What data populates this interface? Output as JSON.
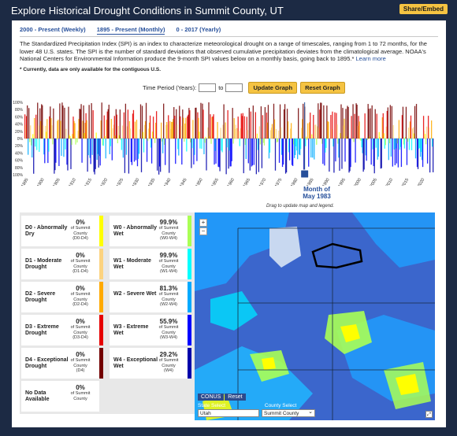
{
  "header": {
    "title": "Explore Historical Drought Conditions in Summit County, UT",
    "share_label": "Share/Embed"
  },
  "tabs": [
    {
      "label": "2000 - Present (Weekly)"
    },
    {
      "label": "1895 - Present (Monthly)"
    },
    {
      "label": "0 - 2017 (Yearly)"
    }
  ],
  "description": {
    "text": "The Standardized Precipitation Index (SPI) is an index to characterize meteorological drought on a range of timescales, ranging from 1 to 72 months, for the lower 48 U.S. states. The SPI is the number of standard deviations that observed cumulative precipitation deviates from the climatological average. NOAA's National Centers for Environmental Information produce the 9-month SPI values below on a monthly basis, going back to 1895.*",
    "link": "Learn more",
    "note": "* Currently, data are only available for the contiguous U.S."
  },
  "period": {
    "label": "Time Period (Years):",
    "to_label": "to",
    "start_value": "",
    "end_value": "",
    "update_label": "Update Graph",
    "reset_label": "Reset Graph"
  },
  "chart_data": {
    "type": "bar",
    "y_ticks": [
      "100%",
      "80%",
      "60%",
      "40%",
      "20%",
      "0%",
      "20%",
      "40%",
      "60%",
      "80%",
      "100%"
    ],
    "x_ticks": [
      "1895",
      "1900",
      "1905",
      "1910",
      "1915",
      "1920",
      "1925",
      "1930",
      "1935",
      "1940",
      "1945",
      "1950",
      "1955",
      "1960",
      "1965",
      "1970",
      "1975",
      "1980",
      "1985",
      "1990",
      "1995",
      "2000",
      "2005",
      "2010",
      "2015",
      "2020"
    ],
    "x_range": [
      1895,
      2024
    ],
    "ylim": [
      -100,
      100
    ],
    "selected_month": 1983.4
  },
  "selection": {
    "line1": "Month of",
    "line2": "May 1983",
    "drag_note": "Drag to update map and legend."
  },
  "legend": [
    {
      "label": "D0 - Abnormally Dry",
      "pct": "0%",
      "sub1": "of Summit",
      "sub2": "County",
      "range": "(D0-D4)",
      "color": "#ffff00"
    },
    {
      "label": "W0 - Abnormally Wet",
      "pct": "99.9%",
      "sub1": "of Summit",
      "sub2": "County",
      "range": "(W0-W4)",
      "color": "#aaff55"
    },
    {
      "label": "D1 - Moderate Drought",
      "pct": "0%",
      "sub1": "of Summit",
      "sub2": "County",
      "range": "(D1-D4)",
      "color": "#fcd37f"
    },
    {
      "label": "W1 - Moderate Wet",
      "pct": "99.9%",
      "sub1": "of Summit",
      "sub2": "County",
      "range": "(W1-W4)",
      "color": "#01ffff"
    },
    {
      "label": "D2 - Severe Drought",
      "pct": "0%",
      "sub1": "of Summit",
      "sub2": "County",
      "range": "(D2-D4)",
      "color": "#ffaa00"
    },
    {
      "label": "W2 - Severe Wet",
      "pct": "81.3%",
      "sub1": "of Summit",
      "sub2": "County",
      "range": "(W2-W4)",
      "color": "#00aaff"
    },
    {
      "label": "D3 - Extreme Drought",
      "pct": "0%",
      "sub1": "of Summit",
      "sub2": "County",
      "range": "(D3-D4)",
      "color": "#e60000"
    },
    {
      "label": "W3 - Extreme Wet",
      "pct": "55.9%",
      "sub1": "of Summit",
      "sub2": "County",
      "range": "(W3-W4)",
      "color": "#0000ff"
    },
    {
      "label": "D4 - Exceptional Drought",
      "pct": "0%",
      "sub1": "of Summit",
      "sub2": "County",
      "range": "(D4)",
      "color": "#730000"
    },
    {
      "label": "W4 - Exceptional Wet",
      "pct": "29.2%",
      "sub1": "of Summit",
      "sub2": "County",
      "range": "(W4)",
      "color": "#0000aa"
    },
    {
      "label": "No Data Available",
      "pct": "0%",
      "sub1": "of Summit",
      "sub2": "County",
      "range": "",
      "color": "#ffffff"
    }
  ],
  "map": {
    "zoom_in": "+",
    "zoom_out": "−",
    "conus_label": "CONUS",
    "reset_label": "Reset",
    "state_label": "State Select",
    "county_label": "County Select",
    "state_value": "Utah",
    "county_value": "Summit County"
  }
}
